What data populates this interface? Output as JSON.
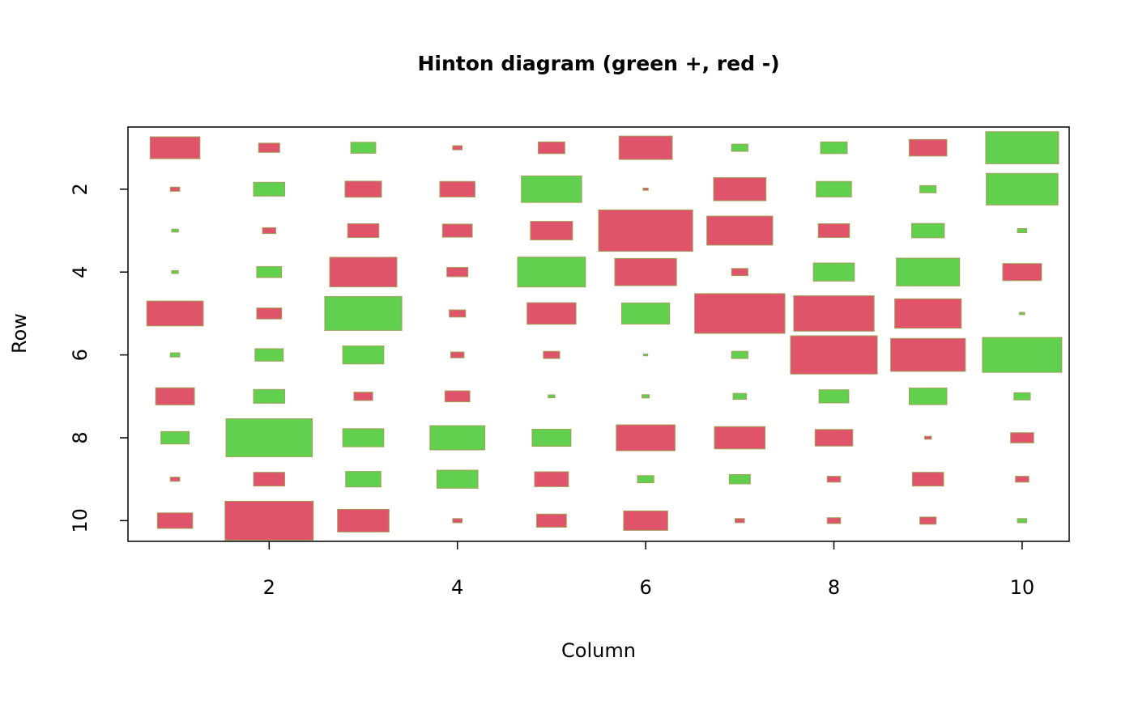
{
  "chart_data": {
    "type": "hinton",
    "title": "Hinton diagram (green +, red -)",
    "xlabel": "Column",
    "ylabel": "Row",
    "xlim": [
      0.5,
      10.5
    ],
    "ylim": [
      10.5,
      0.5
    ],
    "xticks": [
      2,
      4,
      6,
      8,
      10
    ],
    "yticks": [
      2,
      4,
      6,
      8,
      10
    ],
    "positive_color": "#61D04F",
    "negative_color": "#DF536B",
    "border_color": "#a3a05a",
    "values": [
      [
        -0.28,
        -0.05,
        0.07,
        -0.01,
        -0.08,
        -0.32,
        0.03,
        0.08,
        -0.16,
        0.6
      ],
      [
        -0.01,
        0.11,
        -0.15,
        -0.14,
        0.41,
        -0.003,
        -0.31,
        0.14,
        0.03,
        0.58
      ],
      [
        0.005,
        -0.02,
        -0.11,
        -0.1,
        -0.2,
        -1.0,
        -0.49,
        -0.11,
        0.12,
        0.01
      ],
      [
        0.005,
        0.07,
        -0.51,
        -0.05,
        0.52,
        -0.43,
        -0.03,
        0.19,
        0.45,
        -0.17
      ],
      [
        -0.36,
        -0.07,
        0.67,
        -0.03,
        -0.27,
        0.26,
        -0.92,
        -0.73,
        -0.5,
        0.003
      ],
      [
        0.01,
        0.09,
        0.19,
        -0.02,
        -0.03,
        0.002,
        0.03,
        -0.85,
        -0.63,
        0.71
      ],
      [
        -0.17,
        0.11,
        -0.04,
        -0.07,
        0.005,
        0.006,
        0.02,
        0.1,
        0.16,
        0.03
      ],
      [
        0.09,
        0.84,
        0.19,
        0.34,
        0.17,
        -0.39,
        -0.29,
        -0.16,
        -0.005,
        -0.06
      ],
      [
        -0.01,
        -0.11,
        0.14,
        0.19,
        -0.13,
        0.03,
        0.05,
        -0.02,
        -0.11,
        -0.02
      ],
      [
        -0.14,
        -0.88,
        -0.3,
        -0.01,
        -0.1,
        -0.22,
        -0.01,
        -0.02,
        -0.03,
        0.01
      ]
    ]
  }
}
